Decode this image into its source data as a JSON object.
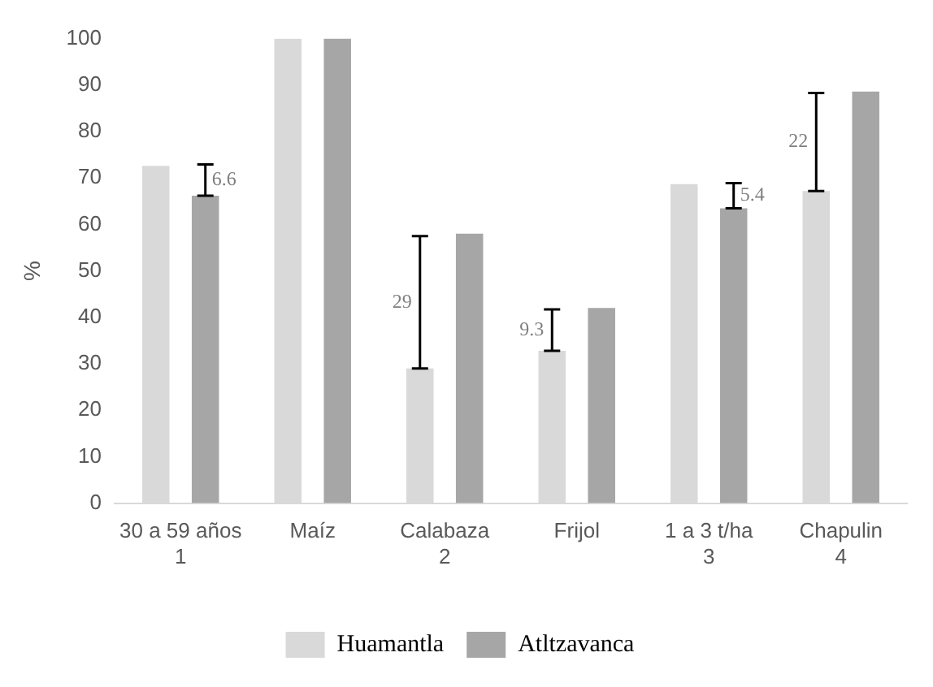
{
  "chart_data": {
    "type": "bar",
    "ylabel": "%",
    "categories": [
      "30 a 59 años\n1",
      "Maíz",
      "Calabaza\n2",
      "Frijol",
      "1 a 3 t/ha\n3",
      "Chapulin\n4"
    ],
    "series": [
      {
        "name": "Huamantla",
        "color": "#d9d9d9",
        "values": [
          72.6,
          100,
          29,
          32.8,
          68.7,
          67.2
        ],
        "errors": [
          null,
          null,
          [
            29,
            57.5
          ],
          [
            32.8,
            41.7
          ],
          null,
          [
            67.2,
            88.3
          ]
        ]
      },
      {
        "name": "Atltzavanca",
        "color": "#a6a6a6",
        "values": [
          66.2,
          100,
          58,
          42,
          63.5,
          88.6
        ],
        "errors": [
          [
            66.2,
            72.9
          ],
          null,
          null,
          null,
          [
            63.5,
            68.9
          ],
          null
        ]
      }
    ],
    "annotations": [
      "6.6",
      "29",
      "9.3",
      "5.4",
      "22"
    ],
    "ylim": [
      0,
      100
    ],
    "yticks": [
      0,
      10,
      20,
      30,
      40,
      50,
      60,
      70,
      80,
      90,
      100
    ],
    "grid": false,
    "legend": "bottom"
  }
}
